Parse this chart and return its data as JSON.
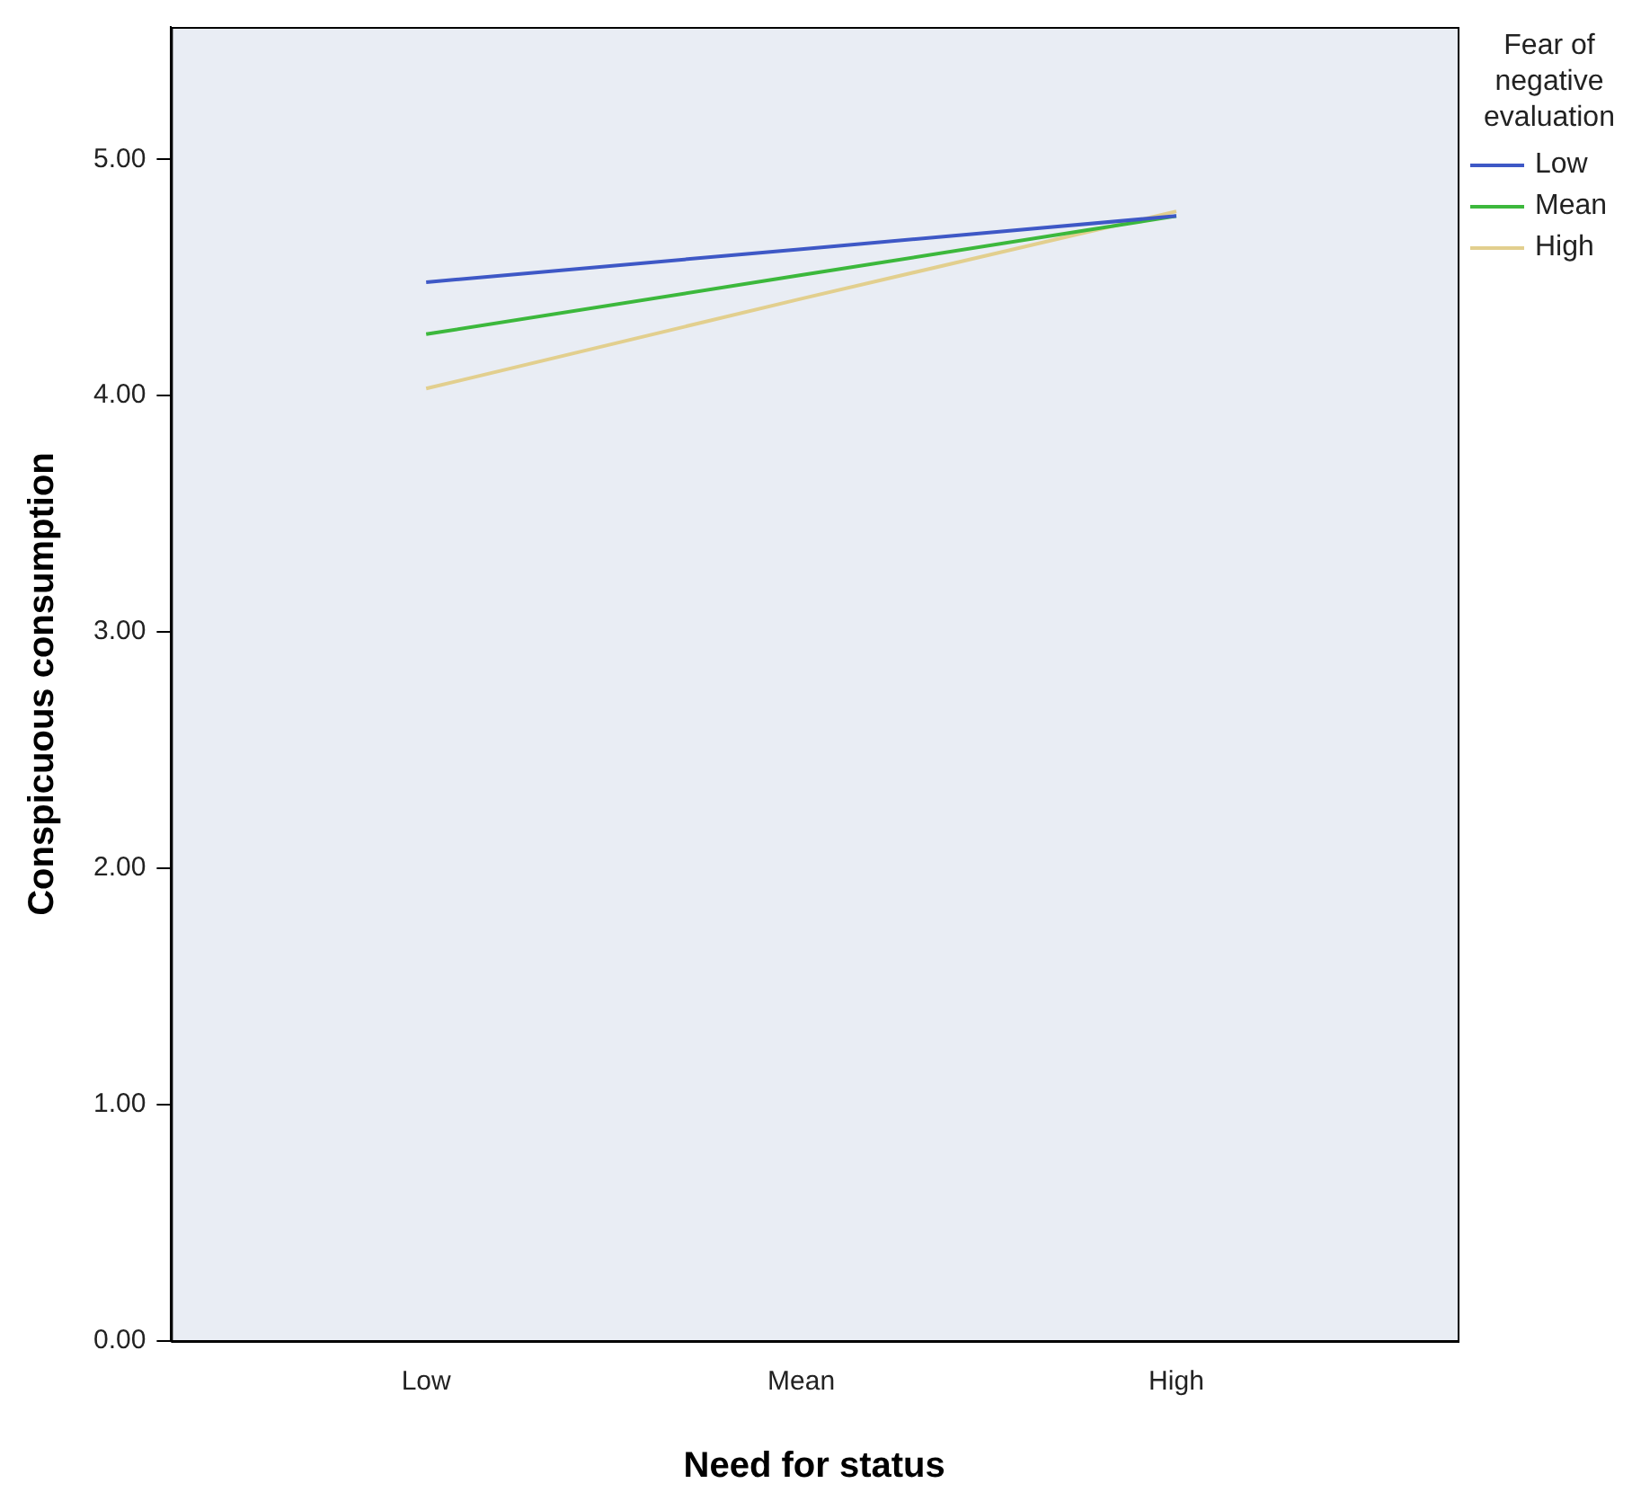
{
  "chart_data": {
    "type": "line",
    "xlabel": "Need for status",
    "ylabel": "Conspicuous consumption",
    "legend_title": "Fear of negative evaluation",
    "categories": [
      "Low",
      "Mean",
      "High"
    ],
    "series": [
      {
        "name": "Low",
        "color": "#3e58c6",
        "values": [
          4.48,
          4.62,
          4.76
        ]
      },
      {
        "name": "Mean",
        "color": "#3cb83c",
        "values": [
          4.26,
          4.51,
          4.76
        ]
      },
      {
        "name": "High",
        "color": "#e2cf8e",
        "values": [
          4.03,
          4.41,
          4.78
        ]
      }
    ],
    "ylim": [
      0,
      5.56
    ],
    "yticks": [
      {
        "value": 0,
        "label": "0.00"
      },
      {
        "value": 1,
        "label": "1.00"
      },
      {
        "value": 2,
        "label": "2.00"
      },
      {
        "value": 3,
        "label": "3.00"
      },
      {
        "value": 4,
        "label": "4.00"
      },
      {
        "value": 5,
        "label": "5.00"
      }
    ],
    "grid": false,
    "legend": "top right",
    "marker": "none",
    "line_style": "solid"
  }
}
